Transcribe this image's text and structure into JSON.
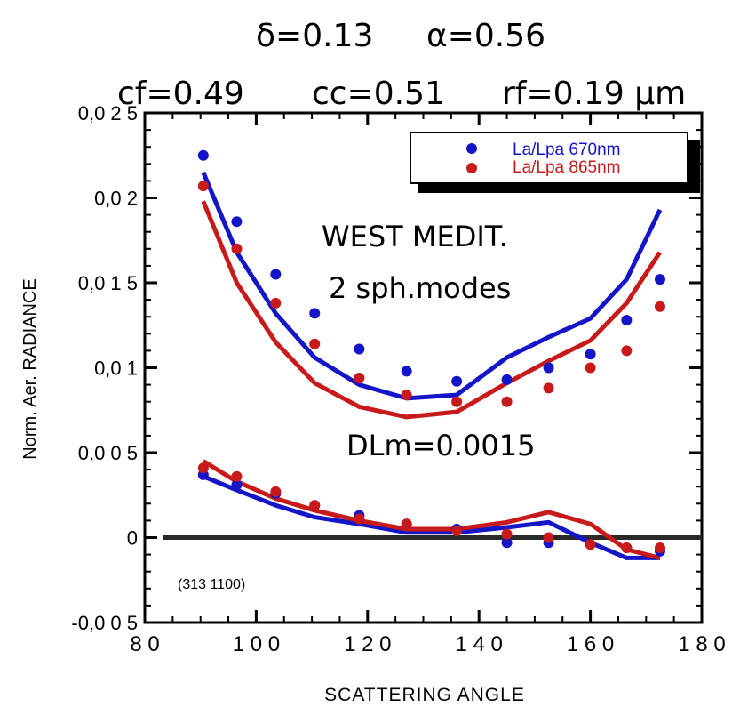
{
  "chart_data": {
    "type": "scatter",
    "header": {
      "line1": {
        "delta": "δ=0.13",
        "alpha": "α=0.56"
      },
      "line2": {
        "cf": "cf=0.49",
        "cc": "cc=0.51",
        "rf": "rf=0.19 μm"
      }
    },
    "xlabel": "SCATTERING ANGLE",
    "ylabel": "Norm. Aer. RADIANCE",
    "xlim": [
      80,
      180
    ],
    "ylim": [
      -0.005,
      0.025
    ],
    "xticks": [
      80,
      100,
      120,
      140,
      160,
      180
    ],
    "xtick_labels": [
      "8 0",
      "1 0 0",
      "1 2 0",
      "1 4 0",
      "1 6 0",
      "1 8 0"
    ],
    "yticks": [
      -0.005,
      0,
      0.005,
      0.01,
      0.015,
      0.02,
      0.025
    ],
    "ytick_labels": [
      "-0,0 0 5",
      "0",
      "0,0 0 5",
      "0,0 1",
      "0,0 1 5",
      "0,0 2",
      "0,0 2 5"
    ],
    "annotations": {
      "region": "WEST MEDIT.",
      "modes": "2 sph.modes",
      "dlm": "DLm=0.0015",
      "code": "(313 1100)"
    },
    "legend": {
      "placement": "top-right",
      "entries": [
        {
          "label": "La/Lpa 670nm",
          "color": "#1515c8"
        },
        {
          "label": "La/Lpa 865nm",
          "color": "#c81a1a"
        }
      ]
    },
    "colors": {
      "blue": "#1515c8",
      "red": "#c81a1a",
      "zero_line": "#2a2a2a"
    },
    "series": [
      {
        "name": "La/Lpa 670nm",
        "kind": "measured",
        "color": "#1515c8",
        "x": [
          90.5,
          96.5,
          103.5,
          110.5,
          118.5,
          127,
          136,
          145,
          152.5,
          160,
          166.5,
          172.5
        ],
        "y": [
          0.0225,
          0.0186,
          0.0155,
          0.0132,
          0.0111,
          0.0098,
          0.0092,
          0.0093,
          0.01,
          0.0108,
          0.0128,
          0.0152
        ]
      },
      {
        "name": "La/Lpa 865nm",
        "kind": "measured",
        "color": "#c81a1a",
        "x": [
          90.5,
          96.5,
          103.5,
          110.5,
          118.5,
          127,
          136,
          145,
          152.5,
          160,
          166.5,
          172.5
        ],
        "y": [
          0.0207,
          0.017,
          0.0138,
          0.0114,
          0.0094,
          0.0084,
          0.008,
          0.008,
          0.0088,
          0.01,
          0.011,
          0.0136
        ]
      },
      {
        "kind": "model",
        "color": "#1515c8",
        "x": [
          90.5,
          96.5,
          103.5,
          110.5,
          118.5,
          127,
          136,
          145,
          152.5,
          160,
          166.5,
          172.5
        ],
        "y": [
          0.0215,
          0.0168,
          0.0132,
          0.0106,
          0.009,
          0.0082,
          0.0084,
          0.0106,
          0.0118,
          0.0129,
          0.0152,
          0.0193
        ]
      },
      {
        "kind": "model",
        "color": "#c81a1a",
        "x": [
          90.5,
          96.5,
          103.5,
          110.5,
          118.5,
          127,
          136,
          145,
          152.5,
          160,
          166.5,
          172.5
        ],
        "y": [
          0.0198,
          0.015,
          0.0115,
          0.0091,
          0.0077,
          0.0071,
          0.0074,
          0.0091,
          0.0104,
          0.0116,
          0.0138,
          0.0168
        ]
      },
      {
        "kind": "residual",
        "color": "#1515c8",
        "x": [
          90.5,
          96.5,
          103.5,
          110.5,
          118.5,
          127,
          136,
          145,
          152.5,
          160,
          166.5,
          172.5
        ],
        "y": [
          0.0037,
          0.0031,
          0.0026,
          0.0019,
          0.0013,
          0.0008,
          0.0005,
          -0.0003,
          -0.0003,
          -0.0004,
          -0.0006,
          -0.0008
        ]
      },
      {
        "kind": "residual",
        "color": "#c81a1a",
        "x": [
          90.5,
          96.5,
          103.5,
          110.5,
          118.5,
          127,
          136,
          145,
          152.5,
          160,
          166.5,
          172.5
        ],
        "y": [
          0.0041,
          0.0036,
          0.0027,
          0.0019,
          0.0011,
          0.0008,
          0.0004,
          0.0002,
          0.0,
          -0.0004,
          -0.0006,
          -0.0006
        ]
      },
      {
        "kind": "residual-model",
        "color": "#1515c8",
        "x": [
          90.5,
          96.5,
          103.5,
          110.5,
          118.5,
          127,
          136,
          145,
          152.5,
          160,
          166.5,
          172.5
        ],
        "y": [
          0.0036,
          0.0028,
          0.0019,
          0.0012,
          0.0008,
          0.0003,
          0.0003,
          0.0006,
          0.0009,
          -0.0003,
          -0.0012,
          -0.0012
        ]
      },
      {
        "kind": "residual-model",
        "color": "#c81a1a",
        "x": [
          90.5,
          96.5,
          103.5,
          110.5,
          118.5,
          127,
          136,
          145,
          152.5,
          160,
          166.5,
          172.5
        ],
        "y": [
          0.0045,
          0.0033,
          0.0023,
          0.0016,
          0.001,
          0.0005,
          0.0005,
          0.0009,
          0.0015,
          0.0008,
          -0.0007,
          -0.0012
        ]
      }
    ]
  }
}
